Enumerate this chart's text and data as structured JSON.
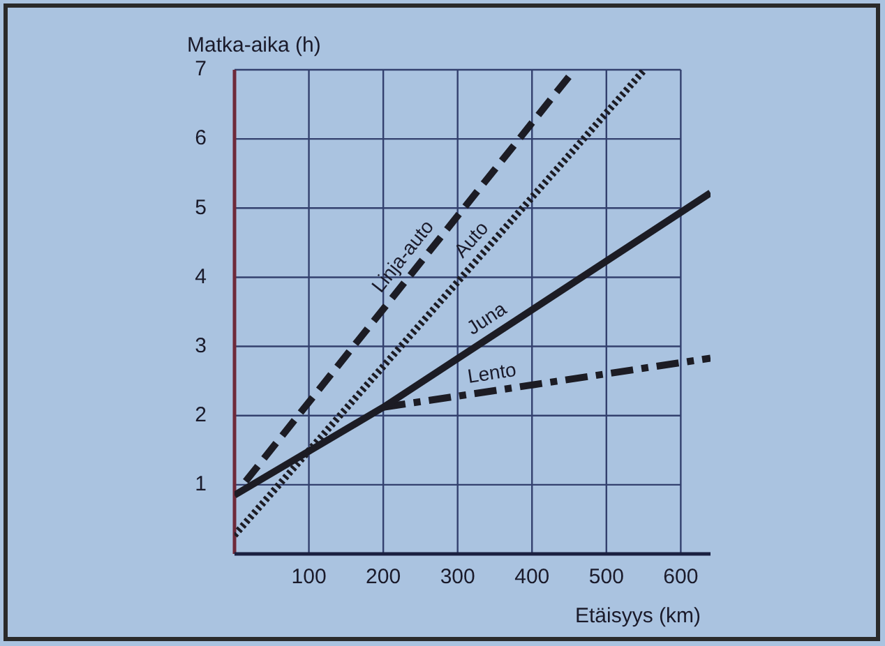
{
  "chart_data": {
    "type": "line",
    "xlabel": "Etäisyys (km)",
    "ylabel": "Matka-aika (h)",
    "xlim": [
      0,
      640
    ],
    "xticks": [
      {
        "value": 0,
        "label": null
      },
      100,
      200,
      300,
      400,
      500,
      600
    ],
    "ylim": [
      0,
      7
    ],
    "yticks": [
      {
        "value": 0,
        "label": null
      },
      1,
      2,
      3,
      4,
      5,
      6,
      7
    ],
    "grid": true,
    "legend": false,
    "marker": "none",
    "series": [
      {
        "name": "Linja-auto",
        "color": "#1c1c24",
        "line_style": "dashed",
        "x": [
          15,
          457
        ],
        "values": [
          1.05,
          7
        ]
      },
      {
        "name": "Auto",
        "color": "#1c1c24",
        "line_style": "dotted",
        "x": [
          0,
          551
        ],
        "values": [
          0.27,
          7
        ]
      },
      {
        "name": "Juna",
        "color": "#1c1c24",
        "line_style": "solid",
        "x": [
          0,
          200,
          640
        ],
        "values": [
          0.85,
          2.12,
          5.22
        ]
      },
      {
        "name": "Lento",
        "color": "#1c1c24",
        "line_style": "dashdot",
        "x": [
          200,
          640
        ],
        "values": [
          2.12,
          2.83
        ]
      }
    ]
  }
}
